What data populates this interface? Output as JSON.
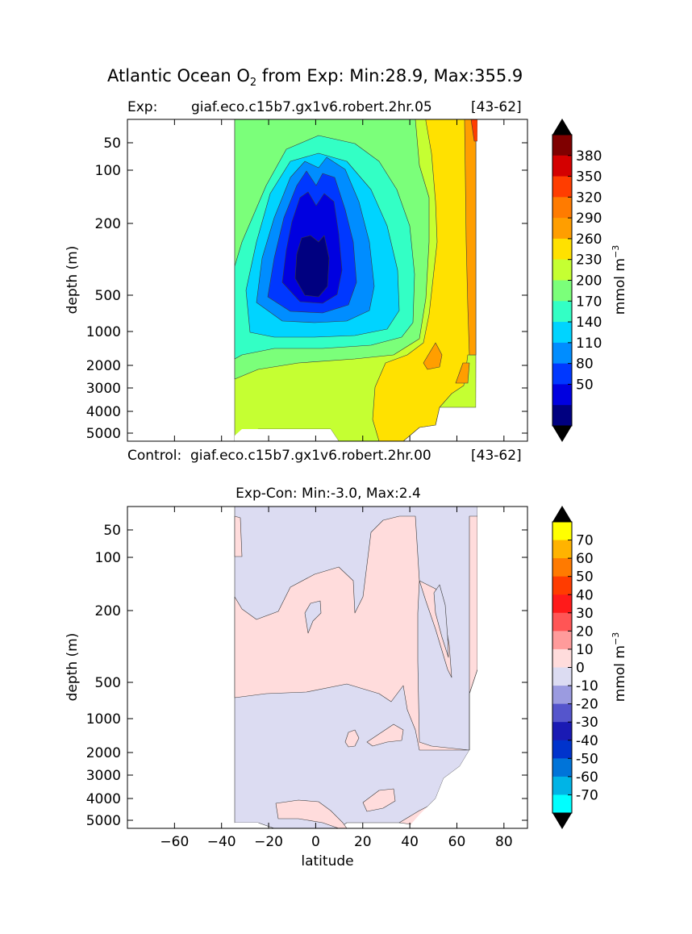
{
  "figure": {
    "title_main": "Atlantic Ocean O",
    "title_sub": "2",
    "title_rest": " from Exp: Min:28.9, Max:355.9"
  },
  "chart_data": [
    {
      "type": "heatmap",
      "panel": "top",
      "exp_label": "Exp:",
      "exp_name": "giaf.eco.c15b7.gx1v6.robert.2hr.05",
      "exp_years": "[43-62]",
      "control_label": "Control:",
      "control_name": "giaf.eco.c15b7.gx1v6.robert.2hr.00",
      "control_years": "[43-62]",
      "ylabel": "depth (m)",
      "yticks": [
        "50",
        "100",
        "200",
        "500",
        "1000",
        "2000",
        "3000",
        "4000",
        "5000"
      ],
      "ytick_values": [
        50,
        100,
        200,
        500,
        1000,
        2000,
        3000,
        4000,
        5000
      ],
      "xlim": [
        -80,
        90
      ],
      "colorbar": {
        "label": "mmol m",
        "label_sup": "−3",
        "levels": [
          "380",
          "350",
          "320",
          "290",
          "260",
          "230",
          "200",
          "170",
          "140",
          "110",
          "80",
          "50"
        ],
        "colors": [
          "#7f0000",
          "#d40000",
          "#ff3d00",
          "#ff7b00",
          "#ff9e00",
          "#ffe100",
          "#c5ff32",
          "#7bff7a",
          "#33ffc5",
          "#00d4ff",
          "#008dff",
          "#0038ff",
          "#0000e0",
          "#000080"
        ],
        "extend": "both"
      }
    },
    {
      "type": "heatmap",
      "panel": "bottom",
      "title": "Exp-Con: Min:-3.0, Max:2.4",
      "xlabel": "latitude",
      "ylabel": "depth (m)",
      "xticks": [
        "−60",
        "−40",
        "−20",
        "0",
        "20",
        "40",
        "60",
        "80"
      ],
      "xtick_values": [
        -60,
        -40,
        -20,
        0,
        20,
        40,
        60,
        80
      ],
      "yticks": [
        "50",
        "100",
        "200",
        "500",
        "1000",
        "2000",
        "3000",
        "4000",
        "5000"
      ],
      "ytick_values": [
        50,
        100,
        200,
        500,
        1000,
        2000,
        3000,
        4000,
        5000
      ],
      "xlim": [
        -80,
        90
      ],
      "colorbar": {
        "label": "mmol m",
        "label_sup": "−3",
        "levels": [
          "70",
          "60",
          "50",
          "40",
          "30",
          "20",
          "10",
          "0",
          "-10",
          "-20",
          "-30",
          "-40",
          "-50",
          "-60",
          "-70"
        ],
        "colors": [
          "#ffff00",
          "#ffb300",
          "#ff7a00",
          "#ff3c00",
          "#ff1a1a",
          "#ff5555",
          "#ff9b9b",
          "#ffdcdc",
          "#dcdcf2",
          "#9b9be0",
          "#5555cc",
          "#1a1ab4",
          "#0033cc",
          "#0074d9",
          "#00b4e6",
          "#00ffff"
        ],
        "extend": "both"
      }
    }
  ]
}
